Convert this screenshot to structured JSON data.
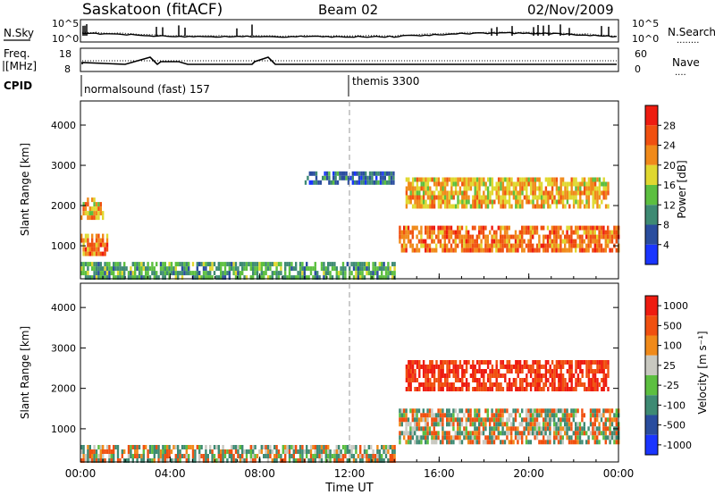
{
  "header": {
    "station": "Saskatoon (fitACF)",
    "beam": "Beam 02",
    "date": "02/Nov/2009"
  },
  "noise_panel": {
    "left_label": "N.Sky",
    "right_label": "N.Search",
    "right_legend": "........",
    "left_ticks": [
      "10^5",
      "10^0"
    ],
    "right_ticks": [
      "10^5",
      "10^0"
    ]
  },
  "freq_panel": {
    "left_label_1": "Freq.",
    "left_label_2": "[MHz]",
    "right_label": "Nave",
    "right_legend": "....",
    "left_ticks": [
      "18",
      "8"
    ],
    "right_ticks": [
      "60",
      "0"
    ]
  },
  "cpid": {
    "label": "CPID",
    "modes": [
      "normalsound (fast) 157",
      "themis 3300"
    ]
  },
  "chart_data": [
    {
      "type": "heatmap",
      "title": "",
      "quantity": "Power",
      "ylabel": "Slant Range [km]",
      "yticks": [
        1000,
        2000,
        3000,
        4000
      ],
      "ylim": [
        180,
        4600
      ],
      "xticks": [
        "00:00",
        "04:00",
        "08:00",
        "12:00",
        "16:00",
        "20:00",
        "00:00"
      ],
      "xlim_hours": [
        0,
        24
      ],
      "colorbar_label": "Power [dB]",
      "colorbar_ticks": [
        4,
        8,
        12,
        16,
        20,
        24,
        28
      ],
      "colorbar_colors": [
        "#1a35ff",
        "#2a4d9e",
        "#3e8a73",
        "#5cbf40",
        "#e0d830",
        "#f08a1a",
        "#f05010",
        "#ee1c10"
      ],
      "marker_hour": 12,
      "regions": [
        {
          "name": "near-range band",
          "t": [
            0,
            14
          ],
          "r": [
            250,
            600
          ],
          "level": 12
        },
        {
          "name": "early echo",
          "t": [
            0,
            1.2
          ],
          "r": [
            850,
            1300
          ],
          "level": 24
        },
        {
          "name": "early echo upper",
          "t": [
            0,
            1.0
          ],
          "r": [
            1650,
            2200
          ],
          "level": 20
        },
        {
          "name": "midnight patch",
          "t": [
            10.0,
            14.0
          ],
          "r": [
            2600,
            2850
          ],
          "level": 8
        },
        {
          "name": "evening band low",
          "t": [
            14.2,
            24
          ],
          "r": [
            850,
            1500
          ],
          "level": 24
        },
        {
          "name": "evening band high",
          "t": [
            14.5,
            23.5
          ],
          "r": [
            2000,
            2700
          ],
          "level": 20
        }
      ]
    },
    {
      "type": "heatmap",
      "title": "",
      "quantity": "Velocity",
      "ylabel": "Slant Range [km]",
      "yticks": [
        1000,
        2000,
        3000,
        4000
      ],
      "ylim": [
        180,
        4600
      ],
      "xticks": [
        "00:00",
        "04:00",
        "08:00",
        "12:00",
        "16:00",
        "20:00",
        "00:00"
      ],
      "xlabel": "Time UT",
      "xlim_hours": [
        0,
        24
      ],
      "colorbar_label": "Velocity [m s⁻¹]",
      "colorbar_ticks": [
        1000,
        500,
        100,
        25,
        -25,
        -100,
        -500,
        -1000
      ],
      "colorbar_colors": [
        "#1a35ff",
        "#2a4d9e",
        "#3e8a73",
        "#5cbf40",
        "#c8c8c0",
        "#f08a1a",
        "#f05010",
        "#ee1c10"
      ],
      "marker_hour": 12,
      "regions": [
        {
          "name": "ground scatter band",
          "t": [
            0,
            14
          ],
          "r": [
            250,
            600
          ],
          "level": 25
        },
        {
          "name": "evening ground scatter",
          "t": [
            14.2,
            24
          ],
          "r": [
            700,
            1500
          ],
          "level": 0
        },
        {
          "name": "evening ionospheric",
          "t": [
            14.5,
            23.5
          ],
          "r": [
            2000,
            2700
          ],
          "level": -300
        }
      ]
    }
  ]
}
